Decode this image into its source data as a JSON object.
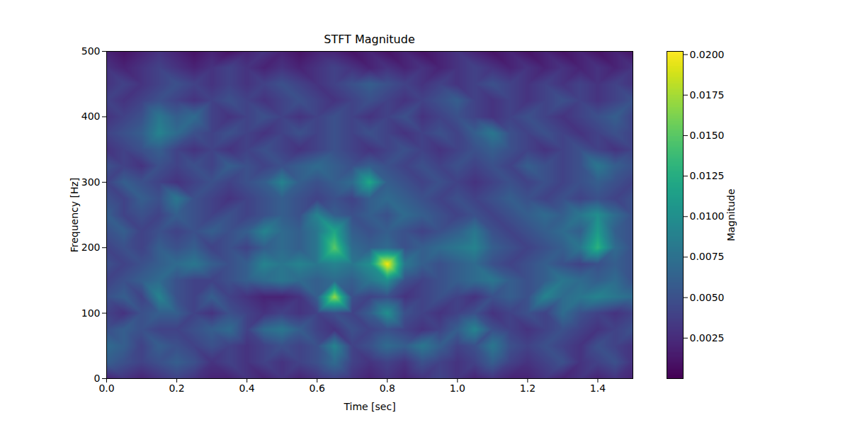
{
  "chart_data": {
    "type": "heatmap",
    "title": "STFT Magnitude",
    "x_label": "Time [sec]",
    "y_label": "Frequency [Hz]",
    "color": "viridis",
    "xlim": [
      0,
      1.5
    ],
    "ylim": [
      0,
      500
    ],
    "xticks": [
      {
        "value": 0,
        "label": "0.0"
      },
      0.2,
      0.4,
      0.6,
      0.8,
      {
        "value": 1,
        "label": "1.0"
      },
      1.2,
      1.4
    ],
    "yticks": [
      0,
      100,
      200,
      300,
      400,
      500
    ],
    "x": [
      0,
      0.05,
      0.1,
      0.15,
      0.2,
      0.25,
      0.3,
      0.35,
      0.4,
      0.45,
      0.5,
      0.55,
      0.6,
      0.65,
      0.7,
      0.75,
      0.8,
      0.85,
      0.9,
      0.95,
      1.0,
      1.05,
      1.1,
      1.15,
      1.2,
      1.25,
      1.3,
      1.35,
      1.4,
      1.45,
      1.5
    ],
    "y": [
      0,
      25,
      50,
      75,
      100,
      125,
      150,
      175,
      200,
      225,
      250,
      275,
      300,
      325,
      350,
      375,
      400,
      425,
      450,
      475,
      500
    ],
    "values": [
      [
        0.002,
        0.003,
        0.002,
        0.003,
        0.004,
        0.003,
        0.002,
        0.002,
        0.003,
        0.002,
        0.003,
        0.002,
        0.003,
        0.004,
        0.003,
        0.002,
        0.003,
        0.002,
        0.003,
        0.004,
        0.003,
        0.002,
        0.003,
        0.002,
        0.002,
        0.003,
        0.002,
        0.003,
        0.002,
        0.003,
        0.002
      ],
      [
        0.006,
        0.005,
        0.004,
        0.005,
        0.006,
        0.005,
        0.003,
        0.004,
        0.003,
        0.004,
        0.003,
        0.004,
        0.005,
        0.007,
        0.004,
        0.003,
        0.004,
        0.003,
        0.005,
        0.004,
        0.003,
        0.004,
        0.006,
        0.004,
        0.003,
        0.004,
        0.005,
        0.003,
        0.004,
        0.005,
        0.003
      ],
      [
        0.007,
        0.006,
        0.004,
        0.006,
        0.005,
        0.004,
        0.005,
        0.004,
        0.003,
        0.004,
        0.005,
        0.004,
        0.005,
        0.009,
        0.004,
        0.005,
        0.007,
        0.006,
        0.008,
        0.006,
        0.004,
        0.005,
        0.008,
        0.005,
        0.004,
        0.005,
        0.004,
        0.003,
        0.005,
        0.004,
        0.003
      ],
      [
        0.005,
        0.006,
        0.005,
        0.004,
        0.004,
        0.005,
        0.006,
        0.007,
        0.004,
        0.007,
        0.008,
        0.006,
        0.004,
        0.003,
        0.005,
        0.004,
        0.005,
        0.004,
        0.003,
        0.004,
        0.006,
        0.009,
        0.005,
        0.004,
        0.003,
        0.004,
        0.005,
        0.004,
        0.003,
        0.004,
        0.005
      ],
      [
        0.004,
        0.003,
        0.005,
        0.006,
        0.006,
        0.004,
        0.003,
        0.005,
        0.004,
        0.003,
        0.004,
        0.003,
        0.004,
        0.005,
        0.004,
        0.006,
        0.01,
        0.005,
        0.004,
        0.003,
        0.004,
        0.005,
        0.003,
        0.004,
        0.005,
        0.004,
        0.007,
        0.005,
        0.004,
        0.003,
        0.004
      ],
      [
        0.005,
        0.006,
        0.004,
        0.009,
        0.005,
        0.004,
        0.006,
        0.004,
        0.003,
        0.002,
        0.002,
        0.003,
        0.006,
        0.017,
        0.005,
        0.004,
        0.005,
        0.003,
        0.004,
        0.005,
        0.004,
        0.003,
        0.005,
        0.006,
        0.005,
        0.009,
        0.007,
        0.008,
        0.009,
        0.008,
        0.007
      ],
      [
        0.004,
        0.005,
        0.006,
        0.007,
        0.005,
        0.004,
        0.004,
        0.005,
        0.006,
        0.007,
        0.008,
        0.007,
        0.006,
        0.007,
        0.006,
        0.008,
        0.01,
        0.005,
        0.004,
        0.005,
        0.006,
        0.007,
        0.008,
        0.006,
        0.005,
        0.006,
        0.008,
        0.007,
        0.006,
        0.007,
        0.005
      ],
      [
        0.005,
        0.004,
        0.005,
        0.006,
        0.007,
        0.008,
        0.006,
        0.005,
        0.006,
        0.009,
        0.008,
        0.009,
        0.008,
        0.009,
        0.008,
        0.01,
        0.02,
        0.008,
        0.006,
        0.005,
        0.006,
        0.007,
        0.005,
        0.004,
        0.005,
        0.006,
        0.005,
        0.004,
        0.005,
        0.006,
        0.005
      ],
      [
        0.004,
        0.005,
        0.004,
        0.006,
        0.005,
        0.006,
        0.004,
        0.005,
        0.004,
        0.006,
        0.007,
        0.006,
        0.008,
        0.015,
        0.007,
        0.006,
        0.007,
        0.005,
        0.006,
        0.007,
        0.008,
        0.009,
        0.006,
        0.005,
        0.004,
        0.005,
        0.006,
        0.008,
        0.013,
        0.007,
        0.005
      ],
      [
        0.005,
        0.006,
        0.004,
        0.005,
        0.004,
        0.005,
        0.006,
        0.005,
        0.006,
        0.009,
        0.007,
        0.006,
        0.008,
        0.012,
        0.006,
        0.005,
        0.006,
        0.005,
        0.004,
        0.005,
        0.006,
        0.008,
        0.005,
        0.004,
        0.005,
        0.006,
        0.007,
        0.006,
        0.011,
        0.006,
        0.005
      ],
      [
        0.006,
        0.004,
        0.005,
        0.004,
        0.006,
        0.005,
        0.004,
        0.005,
        0.004,
        0.005,
        0.006,
        0.005,
        0.009,
        0.006,
        0.005,
        0.006,
        0.005,
        0.007,
        0.006,
        0.005,
        0.004,
        0.005,
        0.004,
        0.005,
        0.006,
        0.007,
        0.006,
        0.008,
        0.01,
        0.007,
        0.005
      ],
      [
        0.005,
        0.004,
        0.006,
        0.005,
        0.008,
        0.005,
        0.004,
        0.003,
        0.004,
        0.005,
        0.006,
        0.005,
        0.004,
        0.005,
        0.004,
        0.006,
        0.007,
        0.006,
        0.005,
        0.004,
        0.005,
        0.004,
        0.005,
        0.006,
        0.005,
        0.004,
        0.005,
        0.004,
        0.005,
        0.004,
        0.005
      ],
      [
        0.004,
        0.006,
        0.005,
        0.004,
        0.003,
        0.004,
        0.005,
        0.004,
        0.005,
        0.006,
        0.009,
        0.006,
        0.005,
        0.006,
        0.007,
        0.012,
        0.006,
        0.005,
        0.004,
        0.005,
        0.004,
        0.003,
        0.004,
        0.005,
        0.004,
        0.005,
        0.004,
        0.005,
        0.006,
        0.005,
        0.004
      ],
      [
        0.005,
        0.004,
        0.003,
        0.005,
        0.004,
        0.005,
        0.004,
        0.006,
        0.005,
        0.004,
        0.005,
        0.006,
        0.007,
        0.006,
        0.005,
        0.006,
        0.005,
        0.004,
        0.005,
        0.004,
        0.005,
        0.004,
        0.005,
        0.004,
        0.006,
        0.005,
        0.004,
        0.005,
        0.008,
        0.006,
        0.005
      ],
      [
        0.003,
        0.004,
        0.005,
        0.006,
        0.004,
        0.003,
        0.004,
        0.003,
        0.004,
        0.005,
        0.004,
        0.003,
        0.004,
        0.005,
        0.004,
        0.003,
        0.004,
        0.005,
        0.004,
        0.003,
        0.004,
        0.005,
        0.006,
        0.005,
        0.004,
        0.003,
        0.004,
        0.005,
        0.004,
        0.003,
        0.004
      ],
      [
        0.004,
        0.005,
        0.006,
        0.009,
        0.007,
        0.005,
        0.004,
        0.005,
        0.004,
        0.003,
        0.004,
        0.005,
        0.004,
        0.005,
        0.004,
        0.005,
        0.004,
        0.003,
        0.004,
        0.005,
        0.004,
        0.006,
        0.008,
        0.005,
        0.004,
        0.005,
        0.004,
        0.003,
        0.004,
        0.005,
        0.004
      ],
      [
        0.003,
        0.004,
        0.005,
        0.008,
        0.006,
        0.007,
        0.004,
        0.003,
        0.004,
        0.005,
        0.004,
        0.003,
        0.004,
        0.005,
        0.004,
        0.003,
        0.004,
        0.005,
        0.003,
        0.004,
        0.005,
        0.004,
        0.003,
        0.004,
        0.005,
        0.004,
        0.003,
        0.004,
        0.005,
        0.006,
        0.004
      ],
      [
        0.004,
        0.003,
        0.004,
        0.005,
        0.004,
        0.003,
        0.004,
        0.005,
        0.004,
        0.003,
        0.004,
        0.005,
        0.004,
        0.003,
        0.004,
        0.005,
        0.004,
        0.003,
        0.004,
        0.005,
        0.006,
        0.004,
        0.003,
        0.004,
        0.003,
        0.004,
        0.005,
        0.004,
        0.003,
        0.004,
        0.005
      ],
      [
        0.003,
        0.004,
        0.003,
        0.004,
        0.005,
        0.004,
        0.003,
        0.004,
        0.003,
        0.004,
        0.005,
        0.004,
        0.003,
        0.004,
        0.005,
        0.006,
        0.005,
        0.004,
        0.003,
        0.004,
        0.003,
        0.004,
        0.005,
        0.004,
        0.003,
        0.004,
        0.003,
        0.004,
        0.003,
        0.004,
        0.003
      ],
      [
        0.003,
        0.002,
        0.003,
        0.004,
        0.003,
        0.002,
        0.003,
        0.004,
        0.003,
        0.002,
        0.003,
        0.002,
        0.003,
        0.004,
        0.003,
        0.002,
        0.003,
        0.002,
        0.003,
        0.002,
        0.003,
        0.004,
        0.003,
        0.002,
        0.003,
        0.002,
        0.003,
        0.002,
        0.003,
        0.002,
        0.003
      ],
      [
        0.002,
        0.001,
        0.002,
        0.003,
        0.002,
        0.001,
        0.002,
        0.001,
        0.002,
        0.003,
        0.002,
        0.001,
        0.002,
        0.002,
        0.001,
        0.002,
        0.001,
        0.002,
        0.001,
        0.002,
        0.003,
        0.002,
        0.001,
        0.002,
        0.001,
        0.002,
        0.001,
        0.002,
        0.001,
        0.002,
        0.001
      ]
    ],
    "colorbar": {
      "label": "Magnitude",
      "range": [
        0,
        0.0202
      ],
      "ticks": [
        {
          "value": 0.0025,
          "label": "0.0025"
        },
        {
          "value": 0.005,
          "label": "0.0050"
        },
        {
          "value": 0.0075,
          "label": "0.0075"
        },
        {
          "value": 0.01,
          "label": "0.0100"
        },
        {
          "value": 0.0125,
          "label": "0.0125"
        },
        {
          "value": 0.015,
          "label": "0.0150"
        },
        {
          "value": 0.0175,
          "label": "0.0175"
        },
        {
          "value": 0.02,
          "label": "0.0200"
        }
      ]
    }
  }
}
